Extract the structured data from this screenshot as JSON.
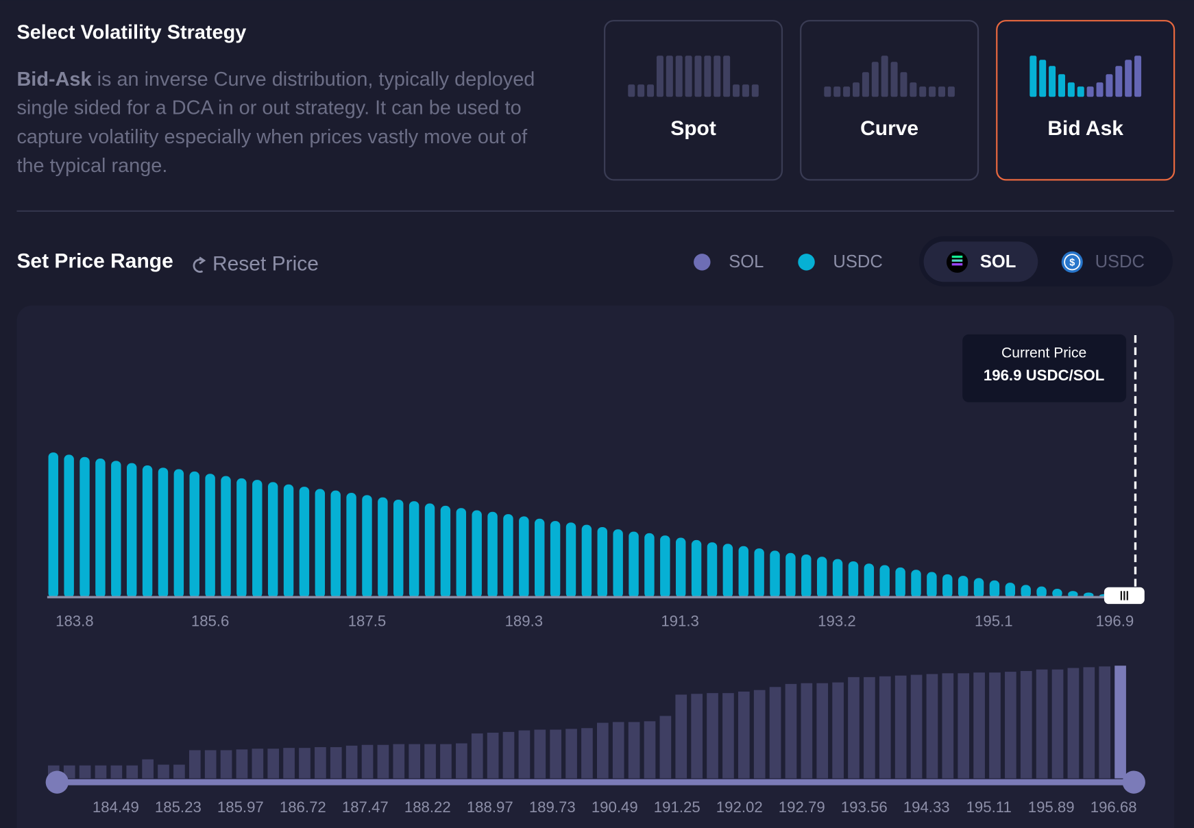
{
  "strategy": {
    "title": "Select Volatility Strategy",
    "description": {
      "bold": "Bid-Ask",
      "first": " is an inverse Curve distribution, typically deployed",
      "lines": [
        "single sided for a DCA in or out strategy. It can be used to",
        "capture volatility especially when prices vastly move out of",
        "the typical range."
      ]
    },
    "options": [
      "Spot",
      "Curve",
      "Bid Ask"
    ],
    "selected": "Bid Ask"
  },
  "price_range": {
    "title": "Set Price Range",
    "reset": "Reset Price",
    "legend": [
      {
        "name": "SOL",
        "color": "#6e6eb5"
      },
      {
        "name": "USDC",
        "color": "#06b0d4"
      }
    ],
    "toggle": [
      "SOL",
      "USDC"
    ],
    "toggle_selected": "SOL"
  },
  "chart": {
    "current_price_label": "Current Price",
    "current_price": "196.9 USDC/SOL",
    "top_color": "#06b0d4",
    "top_values": [
      189,
      186,
      183,
      181,
      178,
      175,
      172,
      169,
      167,
      164,
      161,
      158,
      155,
      153,
      150,
      147,
      144,
      141,
      139,
      136,
      133,
      130,
      127,
      125,
      122,
      119,
      116,
      113,
      111,
      108,
      105,
      102,
      99,
      97,
      94,
      91,
      88,
      85,
      83,
      80,
      77,
      74,
      71,
      69,
      66,
      63,
      60,
      57,
      55,
      52,
      49,
      46,
      43,
      41,
      38,
      35,
      32,
      29,
      27,
      24,
      21,
      18,
      15,
      13,
      10,
      7,
      5,
      3
    ],
    "top_labels": [
      "183.8",
      "185.6",
      "187.5",
      "189.3",
      "191.3",
      "193.2",
      "195.1",
      "196.9"
    ],
    "bottom_color": "#3f3f63",
    "bottom_values": [
      17,
      17,
      17,
      17,
      17,
      17,
      25,
      18,
      18,
      37,
      37,
      37,
      38,
      39,
      39,
      40,
      40,
      41,
      41,
      43,
      44,
      44,
      45,
      45,
      45,
      45,
      46,
      59,
      60,
      61,
      63,
      64,
      64,
      65,
      66,
      73,
      74,
      74,
      75,
      82,
      110,
      111,
      112,
      112,
      114,
      116,
      120,
      124,
      125,
      125,
      126,
      133,
      133,
      134,
      135,
      136,
      137,
      138,
      138,
      139,
      139,
      140,
      141,
      143,
      143,
      145,
      146,
      147,
      148
    ],
    "bottom_labels": [
      "184.49",
      "185.23",
      "185.97",
      "186.72",
      "187.47",
      "188.22",
      "188.97",
      "189.73",
      "190.49",
      "191.25",
      "192.02",
      "192.79",
      "193.56",
      "194.33",
      "195.11",
      "195.89",
      "196.68"
    ]
  }
}
